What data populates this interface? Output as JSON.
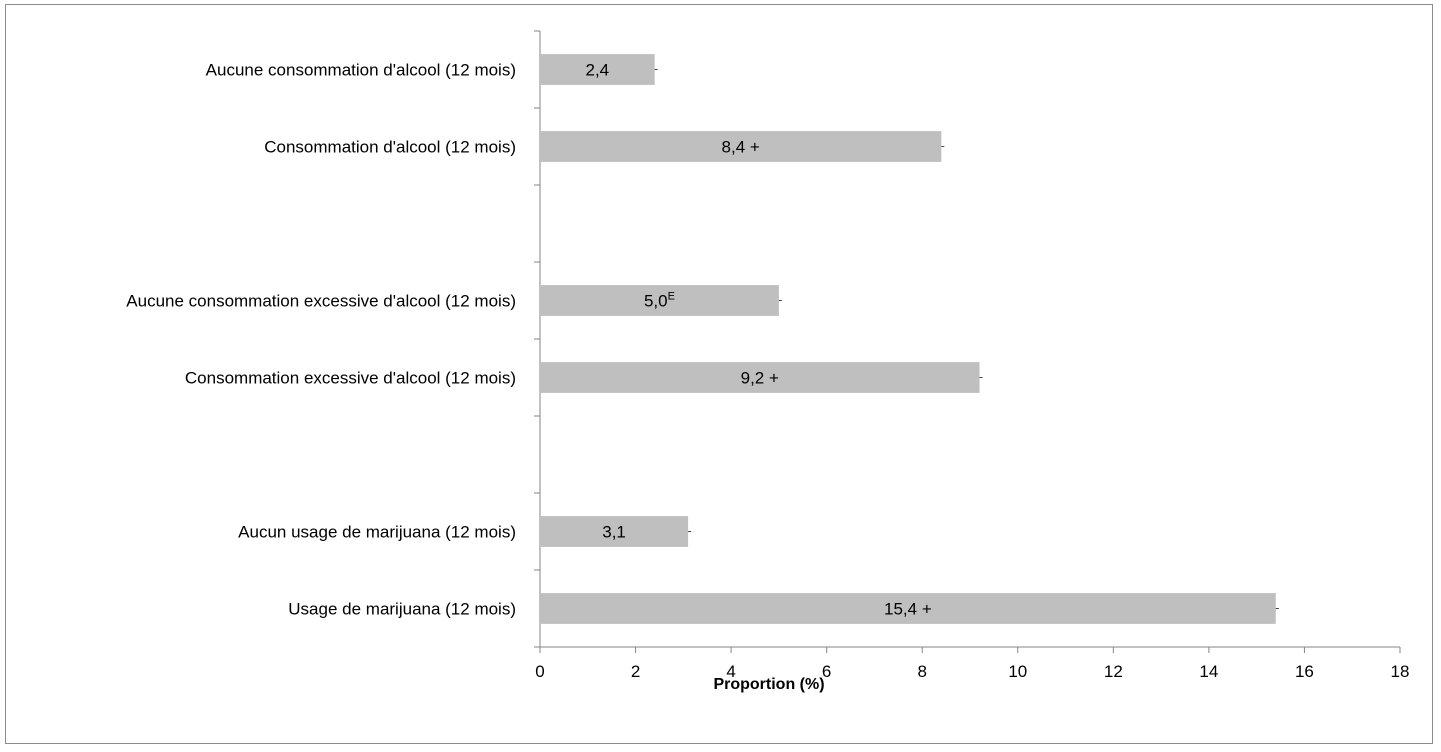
{
  "chart_data": {
    "type": "bar",
    "orientation": "horizontal",
    "title": "",
    "xlabel": "Proportion (%)",
    "ylabel": "",
    "xlim": [
      0,
      18
    ],
    "xticks": [
      0,
      2,
      4,
      6,
      8,
      10,
      12,
      14,
      16,
      18
    ],
    "grid": false,
    "legend": "none",
    "bar_color": "#bfbfbf",
    "groups": [
      {
        "bars": [
          {
            "category": "Aucune consommation d'alcool (12 mois)",
            "value": 2.4,
            "label": "2,4",
            "superscript": "",
            "suffix": ""
          },
          {
            "category": "Consommation  d'alcool (12 mois)",
            "value": 8.4,
            "label": "8,4",
            "superscript": "",
            "suffix": " +"
          }
        ]
      },
      {
        "bars": [
          {
            "category": "Aucune consommation  excessive d'alcool (12 mois)",
            "value": 5.0,
            "label": "5,0",
            "superscript": "E",
            "suffix": ""
          },
          {
            "category": "Consommation  excessive d'alcool (12 mois)",
            "value": 9.2,
            "label": "9,2",
            "superscript": "",
            "suffix": " +"
          }
        ]
      },
      {
        "bars": [
          {
            "category": "Aucun usage de marijuana (12 mois)",
            "value": 3.1,
            "label": "3,1",
            "superscript": "",
            "suffix": ""
          },
          {
            "category": "Usage de marijuana (12 mois)",
            "value": 15.4,
            "label": "15,4",
            "superscript": "",
            "suffix": " +"
          }
        ]
      }
    ]
  }
}
